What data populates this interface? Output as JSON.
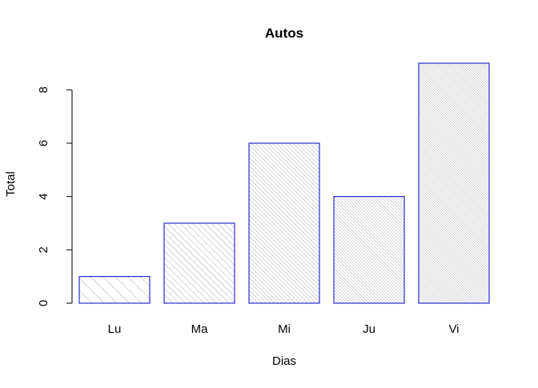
{
  "chart_data": {
    "type": "bar",
    "title": "Autos",
    "xlabel": "Dias",
    "ylabel": "Total",
    "categories": [
      "Lu",
      "Ma",
      "Mi",
      "Ju",
      "Vi"
    ],
    "values": [
      1,
      3,
      6,
      4,
      9
    ],
    "ylim": [
      0,
      9
    ],
    "yticks": [
      "0",
      "2",
      "4",
      "6",
      "8"
    ],
    "grid": false,
    "legend": "none",
    "bar_border_color": "#0000cd",
    "hatch_color": "#888888",
    "hatch_density": [
      10,
      20,
      30,
      40,
      50
    ]
  }
}
